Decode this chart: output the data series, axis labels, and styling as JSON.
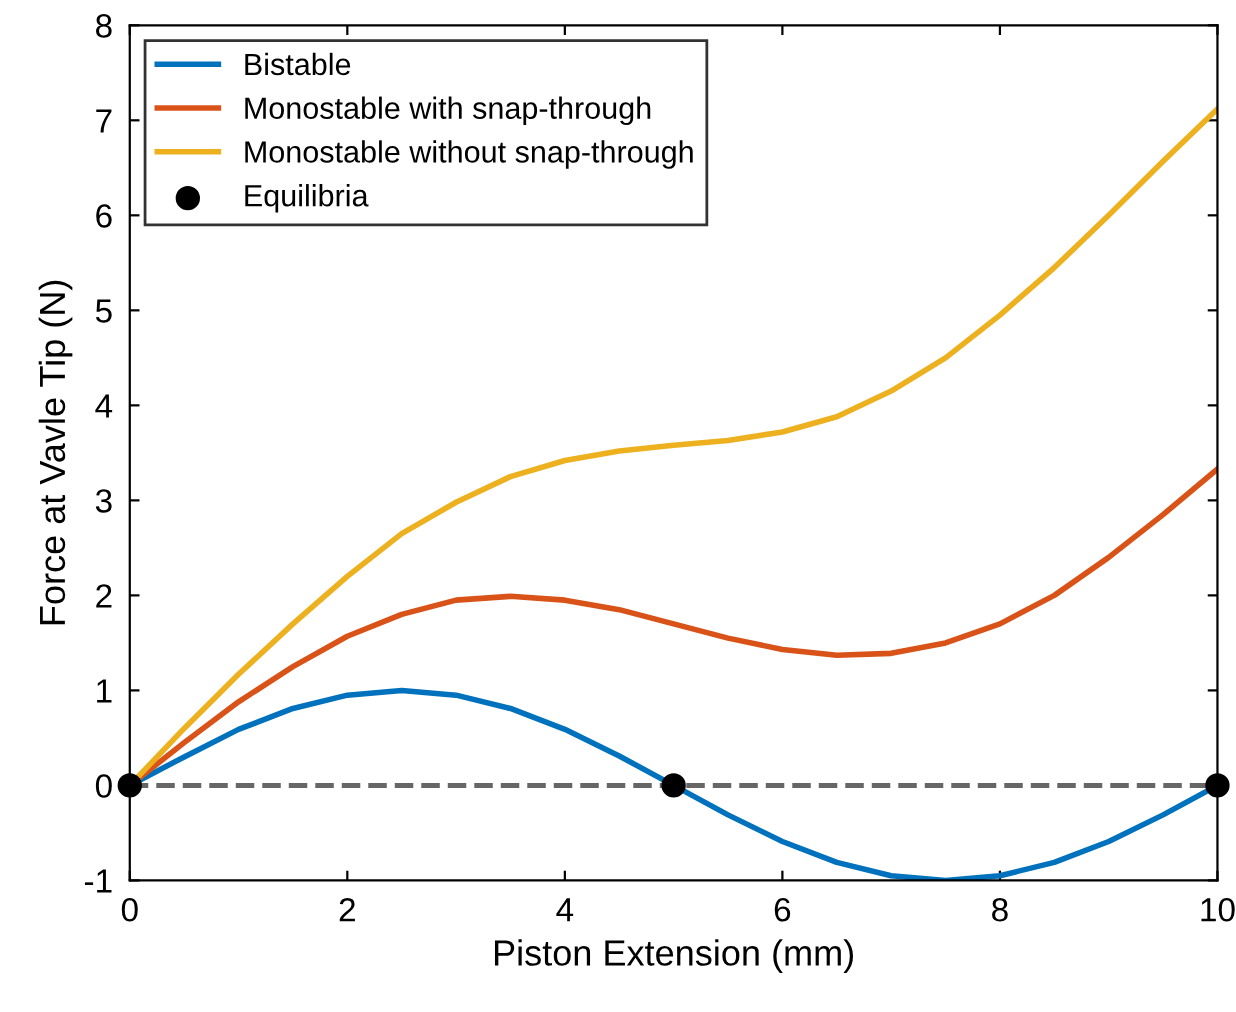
{
  "chart_data": {
    "type": "line",
    "xlabel": "Piston Extension (mm)",
    "ylabel": "Force at Vavle Tip (N)",
    "xlim": [
      0,
      10
    ],
    "xticks": [
      0,
      2,
      4,
      6,
      8,
      10
    ],
    "ylim": [
      -1,
      8
    ],
    "yticks": [
      -1,
      0,
      1,
      2,
      3,
      4,
      5,
      6,
      7,
      8
    ],
    "grid": false,
    "legend": "top left",
    "line_style": "solid",
    "marker": "none",
    "ref_lines": [
      {
        "axis": "y",
        "value": 0,
        "color": "#666666",
        "line_style": "dashed"
      }
    ],
    "series": [
      {
        "name": "Bistable",
        "color": "#0072bd",
        "x": [
          0,
          0.5,
          1,
          1.5,
          2,
          2.5,
          3,
          3.5,
          4,
          4.5,
          5,
          5.5,
          6,
          6.5,
          7,
          7.5,
          8,
          8.5,
          9,
          9.5,
          10
        ],
        "values": [
          0,
          0.3,
          0.59,
          0.81,
          0.95,
          1.0,
          0.95,
          0.81,
          0.59,
          0.31,
          0,
          -0.31,
          -0.59,
          -0.81,
          -0.95,
          -1,
          -0.95,
          -0.81,
          -0.59,
          -0.31,
          0
        ]
      },
      {
        "name": "Monostable with snap-through",
        "color": "#d95319",
        "x": [
          0,
          0.5,
          1,
          1.5,
          2,
          2.5,
          3,
          3.5,
          4,
          4.5,
          5,
          5.5,
          6,
          6.5,
          7,
          7.5,
          8,
          8.5,
          9,
          9.5,
          10
        ],
        "values": [
          0,
          0.45,
          0.88,
          1.25,
          1.57,
          1.8,
          1.95,
          1.99,
          1.95,
          1.85,
          1.7,
          1.55,
          1.43,
          1.37,
          1.39,
          1.5,
          1.7,
          2.0,
          2.4,
          2.85,
          3.33
        ]
      },
      {
        "name": "Monostable without snap-through",
        "color": "#edb120",
        "x": [
          0,
          0.5,
          1,
          1.5,
          2,
          2.5,
          3,
          3.5,
          4,
          4.5,
          5,
          5.5,
          6,
          6.5,
          7,
          7.5,
          8,
          8.5,
          9,
          9.5,
          10
        ],
        "values": [
          0,
          0.6,
          1.17,
          1.7,
          2.2,
          2.65,
          2.98,
          3.25,
          3.42,
          3.52,
          3.58,
          3.63,
          3.72,
          3.88,
          4.15,
          4.5,
          4.95,
          5.45,
          6.0,
          6.57,
          7.12
        ]
      },
      {
        "name": "Equilibria",
        "type": "scatter",
        "color": "#000000",
        "marker": "circle",
        "x": [
          0,
          5,
          10
        ],
        "values": [
          0,
          0,
          0
        ]
      }
    ]
  }
}
